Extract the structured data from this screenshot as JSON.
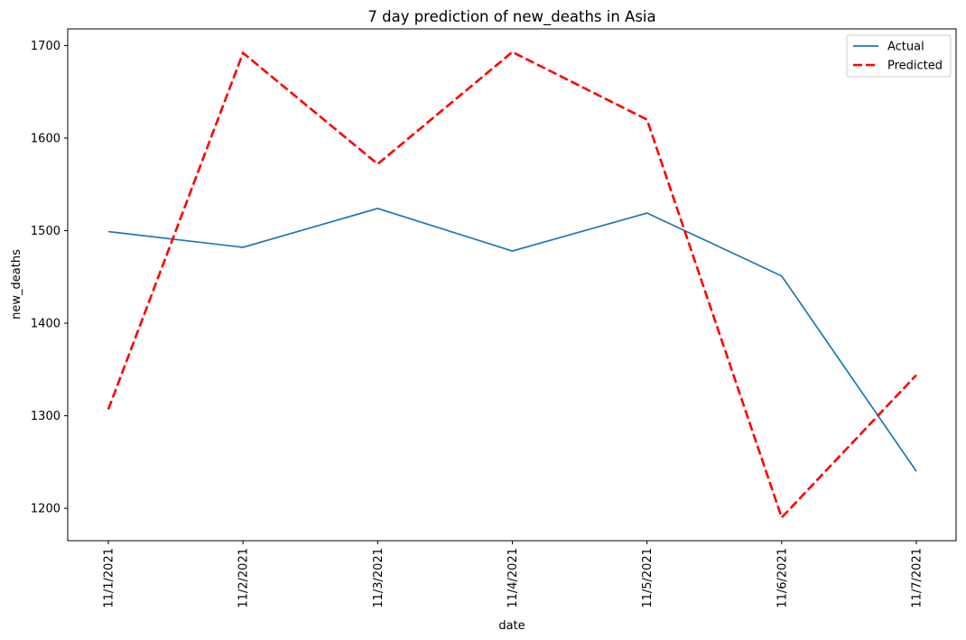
{
  "chart_data": {
    "type": "line",
    "title": "7 day prediction of new_deaths in Asia",
    "xlabel": "date",
    "ylabel": "new_deaths",
    "categories": [
      "11/1/2021",
      "11/2/2021",
      "11/3/2021",
      "11/4/2021",
      "11/5/2021",
      "11/6/2021",
      "11/7/2021"
    ],
    "yticks": [
      1200,
      1300,
      1400,
      1500,
      1600,
      1700
    ],
    "ylim": [
      1165,
      1718
    ],
    "grid": false,
    "legend_position": "top-right",
    "series": [
      {
        "name": "Actual",
        "values": [
          1499,
          1482,
          1524,
          1478,
          1519,
          1451,
          1240
        ],
        "color": "#1f77b4",
        "style": "solid"
      },
      {
        "name": "Predicted",
        "values": [
          1307,
          1692,
          1572,
          1693,
          1620,
          1190,
          1344
        ],
        "color": "#ff0000",
        "style": "dashed"
      }
    ]
  }
}
